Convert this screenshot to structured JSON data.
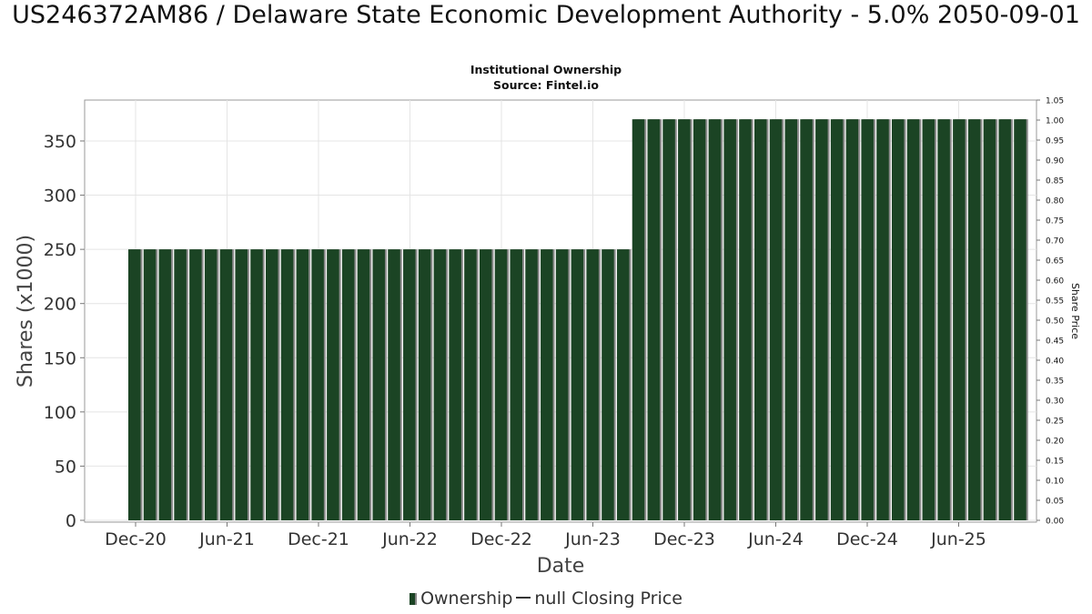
{
  "header": {
    "title": "US246372AM86 / Delaware State Economic Development Authority - 5.0% 2050-09-01",
    "subtitle_line1": "Institutional Ownership",
    "subtitle_line2": "Source: Fintel.io"
  },
  "legend": {
    "ownership_label": "Ownership",
    "price_label": "null Closing Price"
  },
  "colors": {
    "bar": "#1b4424",
    "bar_shadow": "#8a8a8a",
    "grid": "#e4e4e4",
    "frame": "#999999"
  },
  "chart_data": {
    "type": "bar",
    "xlabel": "Date",
    "ylabel": "Shares (x1000)",
    "y2label": "Share Price",
    "ylim": [
      0,
      390
    ],
    "y2lim": [
      0,
      1.05
    ],
    "yticks": [
      0,
      50,
      100,
      150,
      200,
      250,
      300,
      350
    ],
    "y2ticks": [
      "0.00",
      "0.05",
      "0.10",
      "0.15",
      "0.20",
      "0.25",
      "0.30",
      "0.35",
      "0.40",
      "0.45",
      "0.50",
      "0.55",
      "0.60",
      "0.65",
      "0.70",
      "0.75",
      "0.80",
      "0.85",
      "0.90",
      "0.95",
      "1.00",
      "1.05"
    ],
    "xtick_labels": [
      "Dec-20",
      "Jun-21",
      "Dec-21",
      "Jun-22",
      "Dec-22",
      "Jun-23",
      "Dec-23",
      "Jun-24",
      "Dec-24",
      "Jun-25"
    ],
    "grid": true,
    "legend_position": "bottom",
    "series": [
      {
        "name": "Ownership",
        "values": [
          250,
          250,
          250,
          250,
          250,
          250,
          250,
          250,
          250,
          250,
          250,
          250,
          250,
          250,
          250,
          250,
          250,
          250,
          250,
          250,
          250,
          250,
          250,
          250,
          250,
          250,
          250,
          250,
          250,
          250,
          250,
          250,
          250,
          370,
          370,
          370,
          370,
          370,
          370,
          370,
          370,
          370,
          370,
          370,
          370,
          370,
          370,
          370,
          370,
          370,
          370,
          370,
          370,
          370,
          370,
          370,
          370,
          370,
          370
        ]
      }
    ]
  }
}
